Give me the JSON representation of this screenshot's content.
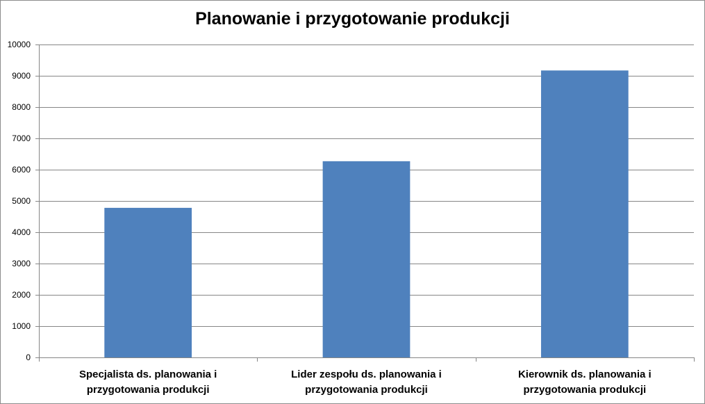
{
  "chart_data": {
    "type": "bar",
    "title": "Planowanie i przygotowanie produkcji",
    "xlabel": "",
    "ylabel": "",
    "categories": [
      [
        "Specjalista ds. planowania i",
        "przygotowania produkcji"
      ],
      [
        "Lider zespołu ds. planowania i",
        "przygotowania produkcji"
      ],
      [
        "Kierownik ds. planowania i",
        "przygotowania produkcji"
      ]
    ],
    "values": [
      4780,
      6270,
      9170
    ],
    "ylim": [
      0,
      10000
    ],
    "yticks": [
      0,
      1000,
      2000,
      3000,
      4000,
      5000,
      6000,
      7000,
      8000,
      9000,
      10000
    ],
    "grid": true,
    "legend": "none",
    "colors": {
      "bar": "#4f81bd",
      "grid": "#868686",
      "axis": "#868686"
    }
  }
}
